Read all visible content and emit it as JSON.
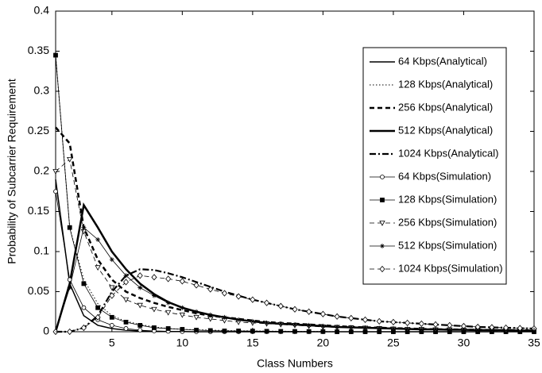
{
  "chart_data": {
    "type": "line",
    "x_label": "Class Numbers",
    "y_label": "Probability of Subcarrier Requirement",
    "x": [
      1,
      2,
      3,
      4,
      5,
      6,
      7,
      8,
      9,
      10,
      11,
      12,
      13,
      14,
      15,
      16,
      17,
      18,
      19,
      20,
      21,
      22,
      23,
      24,
      25,
      26,
      27,
      28,
      29,
      30,
      31,
      32,
      33,
      34,
      35
    ],
    "xlim": [
      1,
      35
    ],
    "xticks": [
      5,
      10,
      15,
      20,
      25,
      30,
      35
    ],
    "ylim": [
      0,
      0.4
    ],
    "yticks": [
      0,
      0.05,
      0.1,
      0.15,
      0.2,
      0.25,
      0.3,
      0.35,
      0.4
    ],
    "legend": "upper right",
    "series": [
      {
        "name": "64 Kbps(Analytical)",
        "color": "#000000",
        "linestyle": "solid",
        "linewidth": 1.5,
        "marker": "none",
        "values": [
          0.19,
          0.06,
          0.02,
          0.008,
          0.004,
          0.002,
          0.001,
          0.0005,
          0.0003,
          0.0002,
          0,
          0,
          0,
          0,
          0,
          0,
          0,
          0,
          0,
          0,
          0,
          0,
          0,
          0,
          0,
          0,
          0,
          0,
          0,
          0,
          0,
          0,
          0,
          0,
          0
        ]
      },
      {
        "name": "128 Kbps(Analytical)",
        "color": "#000000",
        "linestyle": "dotted",
        "linewidth": 1,
        "marker": "none",
        "values": [
          0.345,
          0.13,
          0.065,
          0.035,
          0.02,
          0.013,
          0.009,
          0.006,
          0.004,
          0.003,
          0.0025,
          0.002,
          0.0015,
          0.0012,
          0.001,
          0.0008,
          0.0006,
          0.0005,
          0.0004,
          0.0003,
          0,
          0,
          0,
          0,
          0,
          0,
          0,
          0,
          0,
          0,
          0,
          0,
          0,
          0,
          0
        ]
      },
      {
        "name": "256 Kbps(Analytical)",
        "color": "#000000",
        "linestyle": "dashed",
        "linewidth": 2.5,
        "marker": "none",
        "values": [
          0.255,
          0.235,
          0.13,
          0.09,
          0.065,
          0.05,
          0.042,
          0.036,
          0.031,
          0.027,
          0.023,
          0.02,
          0.018,
          0.016,
          0.014,
          0.012,
          0.011,
          0.01,
          0.009,
          0.008,
          0.007,
          0.006,
          0.0055,
          0.005,
          0.0045,
          0.004,
          0.0035,
          0.003,
          0.003,
          0.0025,
          0.0025,
          0.002,
          0.002,
          0.002,
          0.0015
        ]
      },
      {
        "name": "512 Kbps(Analytical)",
        "color": "#000000",
        "linestyle": "solid",
        "linewidth": 2.5,
        "marker": "none",
        "values": [
          0,
          0.06,
          0.158,
          0.13,
          0.1,
          0.078,
          0.06,
          0.047,
          0.037,
          0.03,
          0.025,
          0.021,
          0.018,
          0.015,
          0.013,
          0.011,
          0.01,
          0.009,
          0.008,
          0.007,
          0.006,
          0.0055,
          0.005,
          0.0045,
          0.004,
          0.0035,
          0.003,
          0.003,
          0.0025,
          0.0025,
          0.002,
          0.002,
          0.002,
          0.0015,
          0.0015
        ]
      },
      {
        "name": "1024 Kbps(Analytical)",
        "color": "#000000",
        "linestyle": "dashdot",
        "linewidth": 2.2,
        "marker": "none",
        "values": [
          0,
          0,
          0.005,
          0.02,
          0.05,
          0.07,
          0.078,
          0.077,
          0.073,
          0.068,
          0.062,
          0.056,
          0.05,
          0.045,
          0.04,
          0.036,
          0.032,
          0.028,
          0.025,
          0.022,
          0.019,
          0.017,
          0.015,
          0.013,
          0.012,
          0.011,
          0.01,
          0.009,
          0.008,
          0.007,
          0.006,
          0.0055,
          0.005,
          0.0045,
          0.004
        ]
      },
      {
        "name": "64 Kbps(Simulation)",
        "color": "#000000",
        "linestyle": "solid",
        "linewidth": 0.8,
        "marker": "circle",
        "values": [
          0.175,
          0.065,
          0.03,
          0.015,
          0.008,
          0.004,
          0.002,
          0.001,
          0.0005,
          0.0003,
          0,
          0,
          0,
          0,
          0,
          0,
          0,
          0,
          0,
          0,
          0,
          0,
          0,
          0,
          0,
          0,
          0,
          0,
          0,
          0,
          0,
          0,
          0,
          0,
          0
        ]
      },
      {
        "name": "128 Kbps(Simulation)",
        "color": "#000000",
        "linestyle": "solid",
        "linewidth": 0.8,
        "marker": "square",
        "values": [
          0.345,
          0.13,
          0.06,
          0.03,
          0.018,
          0.012,
          0.008,
          0.005,
          0.004,
          0.003,
          0.002,
          0.0015,
          0.001,
          0.001,
          0.0008,
          0.0006,
          0.0005,
          0.0004,
          0.0003,
          0.0002,
          0,
          0,
          0,
          0,
          0,
          0,
          0,
          0,
          0,
          0,
          0,
          0,
          0,
          0,
          0
        ]
      },
      {
        "name": "256 Kbps(Simulation)",
        "color": "#000000",
        "linestyle": "dashed",
        "linewidth": 0.8,
        "marker": "triangle-down",
        "values": [
          0.2,
          0.215,
          0.125,
          0.08,
          0.055,
          0.04,
          0.033,
          0.028,
          0.024,
          0.021,
          0.018,
          0.016,
          0.014,
          0.012,
          0.011,
          0.01,
          0.009,
          0.008,
          0.007,
          0.006,
          0.0055,
          0.005,
          0.0045,
          0.004,
          0.0035,
          0.003,
          0.003,
          0.0025,
          0.0025,
          0.002,
          0.002,
          0.002,
          0.0015,
          0.0015,
          0.0015
        ]
      },
      {
        "name": "512 Kbps(Simulation)",
        "color": "#000000",
        "linestyle": "solid",
        "linewidth": 0.8,
        "marker": "star",
        "values": [
          0,
          0.055,
          0.13,
          0.115,
          0.09,
          0.07,
          0.055,
          0.045,
          0.036,
          0.03,
          0.025,
          0.021,
          0.018,
          0.015,
          0.013,
          0.011,
          0.01,
          0.009,
          0.008,
          0.007,
          0.006,
          0.0055,
          0.005,
          0.0045,
          0.004,
          0.0035,
          0.003,
          0.003,
          0.0025,
          0.0025,
          0.002,
          0.002,
          0.002,
          0.0015,
          0.0015
        ]
      },
      {
        "name": "1024 Kbps(Simulation)",
        "color": "#000000",
        "linestyle": "dashed",
        "linewidth": 0.8,
        "marker": "diamond",
        "values": [
          0,
          0,
          0.005,
          0.018,
          0.045,
          0.062,
          0.07,
          0.068,
          0.066,
          0.063,
          0.058,
          0.053,
          0.048,
          0.044,
          0.04,
          0.036,
          0.032,
          0.028,
          0.025,
          0.022,
          0.019,
          0.017,
          0.015,
          0.013,
          0.012,
          0.011,
          0.01,
          0.009,
          0.008,
          0.007,
          0.006,
          0.0055,
          0.005,
          0.0045,
          0.004
        ]
      }
    ]
  }
}
